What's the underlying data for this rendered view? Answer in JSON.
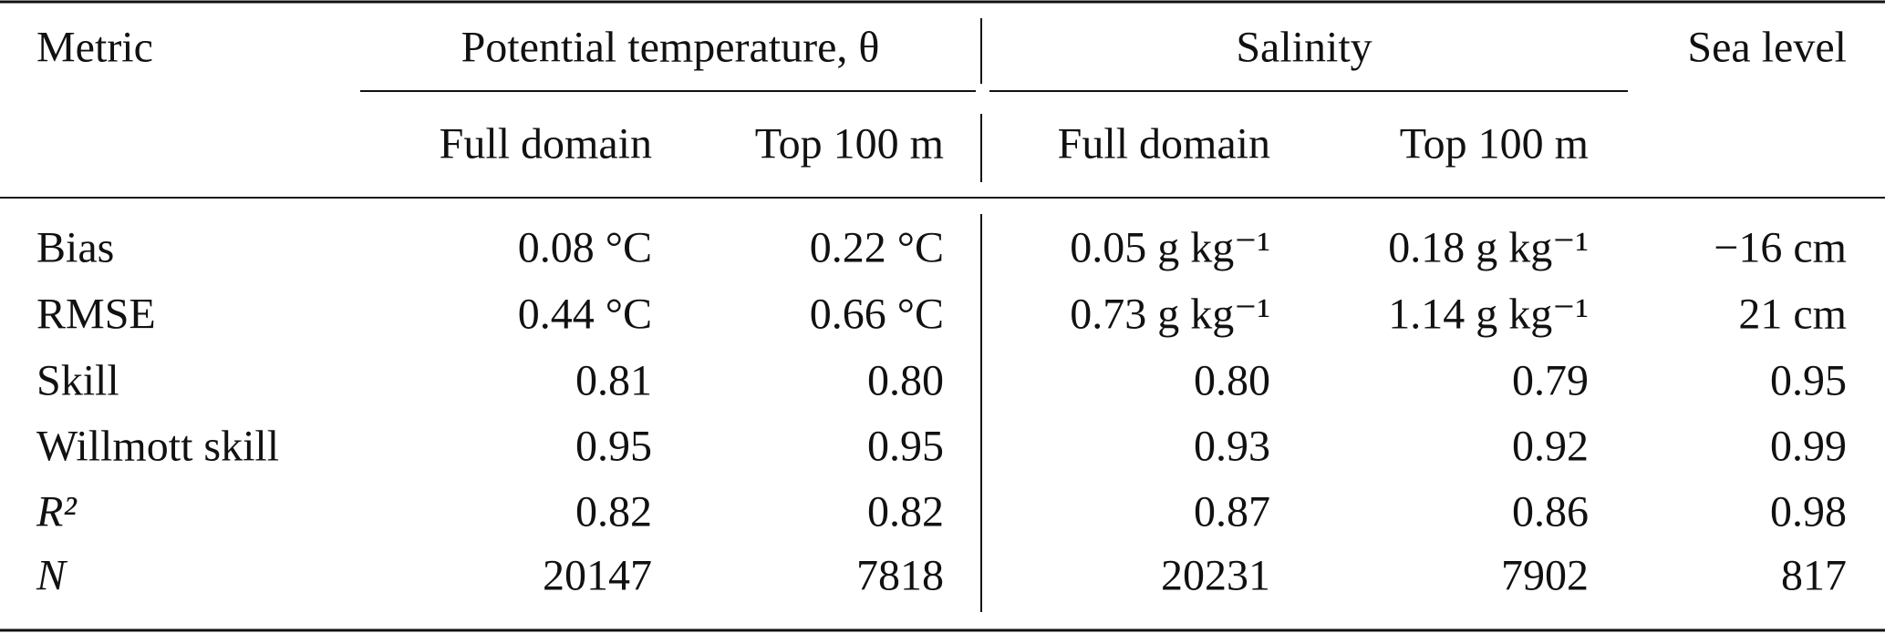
{
  "header": {
    "metric": "Metric",
    "groups": [
      "Potential temperature, θ",
      "Salinity",
      "Sea level"
    ],
    "subheaders": [
      "Full domain",
      "Top 100 m",
      "Full domain",
      "Top 100 m"
    ]
  },
  "table": {
    "rows": [
      [
        "Bias",
        "0.08 °C",
        "0.22 °C",
        "0.05 g kg⁻¹",
        "0.18 g kg⁻¹",
        "−16 cm"
      ],
      [
        "RMSE",
        "0.44 °C",
        "0.66 °C",
        "0.73 g kg⁻¹",
        "1.14 g kg⁻¹",
        "21 cm"
      ],
      [
        "Skill",
        "0.81",
        "0.80",
        "0.80",
        "0.79",
        "0.95"
      ],
      [
        "Willmott skill",
        "0.95",
        "0.95",
        "0.93",
        "0.92",
        "0.99"
      ],
      [
        "R²",
        "0.82",
        "0.82",
        "0.87",
        "0.86",
        "0.98"
      ],
      [
        "N",
        "20147",
        "7818",
        "20231",
        "7902",
        "817"
      ]
    ]
  }
}
